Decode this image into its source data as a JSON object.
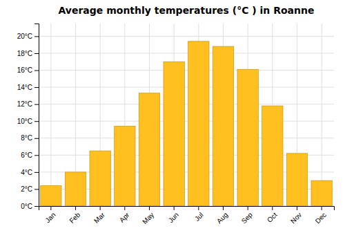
{
  "chart_data": {
    "type": "bar",
    "title": "Average monthly temperatures (°C ) in Roanne",
    "categories": [
      "Jan",
      "Feb",
      "Mar",
      "Apr",
      "May",
      "Jun",
      "Jul",
      "Aug",
      "Sep",
      "Oct",
      "Nov",
      "Dec"
    ],
    "values": [
      2.4,
      4.0,
      6.5,
      9.4,
      13.3,
      17.0,
      19.4,
      18.8,
      16.1,
      11.8,
      6.2,
      3.0
    ],
    "color": "#FFC020",
    "ylim": [
      0,
      21.5
    ],
    "yticks": [
      {
        "value": 0,
        "label": "0°C"
      },
      {
        "value": 2,
        "label": "2°C"
      },
      {
        "value": 4,
        "label": "4°C"
      },
      {
        "value": 6,
        "label": "6°C"
      },
      {
        "value": 8,
        "label": "8°C"
      },
      {
        "value": 10,
        "label": "10°C"
      },
      {
        "value": 12,
        "label": "12°C"
      },
      {
        "value": 14,
        "label": "14°C"
      },
      {
        "value": 16,
        "label": "16°C"
      },
      {
        "value": 18,
        "label": "18°C"
      },
      {
        "value": 20,
        "label": "20°C"
      }
    ],
    "grid": true
  }
}
